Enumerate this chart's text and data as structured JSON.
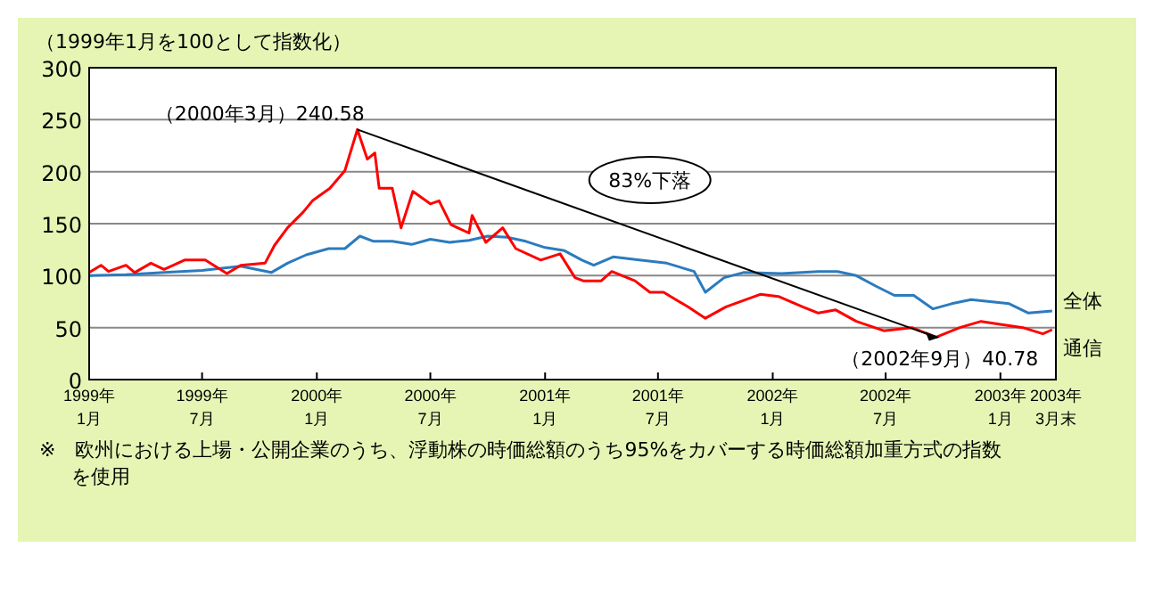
{
  "chart_data": {
    "type": "line",
    "ylabel": "（1999年1月を100として指数化）",
    "xlim": [
      "1999-01-01",
      "2003-03-31"
    ],
    "xticks": [
      {
        "value": "1999-01-01",
        "label": "1999年\n1月"
      },
      {
        "value": "1999-07-01",
        "label": "1999年\n7月"
      },
      {
        "value": "2000-01-01",
        "label": "2000年\n1月"
      },
      {
        "value": "2000-07-01",
        "label": "2000年\n7月"
      },
      {
        "value": "2001-01-01",
        "label": "2001年\n1月"
      },
      {
        "value": "2001-07-01",
        "label": "2001年\n7月"
      },
      {
        "value": "2002-01-01",
        "label": "2002年\n1月"
      },
      {
        "value": "2002-07-01",
        "label": "2002年\n7月"
      },
      {
        "value": "2003-01-01",
        "label": "2003年\n1月"
      },
      {
        "value": "2003-03-31",
        "label": "2003年\n3月末"
      }
    ],
    "ylim": [
      0,
      300
    ],
    "yticks": [
      0,
      50,
      100,
      150,
      200,
      250,
      300
    ],
    "grid": "y",
    "marker": "none",
    "line_style": "solid",
    "series": [
      {
        "name": "全体",
        "color": "#2b7bbf",
        "x": [
          "1999-01-01",
          "1999-03-01",
          "1999-05-01",
          "1999-07-01",
          "1999-09-01",
          "1999-10-20",
          "1999-11-15",
          "1999-12-15",
          "2000-01-20",
          "2000-02-15",
          "2000-03-10",
          "2000-04-01",
          "2000-05-01",
          "2000-06-01",
          "2000-07-01",
          "2000-08-01",
          "2000-09-01",
          "2000-10-01",
          "2000-11-01",
          "2000-12-01",
          "2001-01-01",
          "2001-02-01",
          "2001-03-01",
          "2001-03-20",
          "2001-04-20",
          "2001-06-01",
          "2001-07-15",
          "2001-08-28",
          "2001-09-15",
          "2001-10-15",
          "2001-11-15",
          "2002-01-15",
          "2002-03-15",
          "2002-04-15",
          "2002-05-15",
          "2002-06-15",
          "2002-07-15",
          "2002-08-15",
          "2002-09-15",
          "2002-10-15",
          "2002-11-15",
          "2003-01-15",
          "2003-02-15",
          "2003-03-25"
        ],
        "values": [
          100,
          101,
          103,
          105,
          109,
          103,
          112,
          120,
          126,
          126,
          138,
          133,
          133,
          130,
          135,
          132,
          134,
          138,
          137,
          133,
          127,
          124,
          115,
          110,
          118,
          115,
          112,
          104,
          84,
          98,
          103,
          102,
          104,
          104,
          100,
          90,
          81,
          81,
          68,
          73,
          77,
          73,
          64,
          66
        ]
      },
      {
        "name": "通信",
        "color": "#ff0000",
        "x": [
          "1999-01-01",
          "1999-01-20",
          "1999-02-01",
          "1999-03-01",
          "1999-03-15",
          "1999-04-10",
          "1999-05-01",
          "1999-06-03",
          "1999-07-06",
          "1999-08-10",
          "1999-09-01",
          "1999-10-10",
          "1999-10-25",
          "1999-11-15",
          "1999-12-10",
          "1999-12-25",
          "2000-01-22",
          "2000-02-15",
          "2000-03-06",
          "2000-03-22",
          "2000-04-03",
          "2000-04-10",
          "2000-05-01",
          "2000-05-15",
          "2000-06-03",
          "2000-07-01",
          "2000-07-15",
          "2000-08-03",
          "2000-09-01",
          "2000-09-06",
          "2000-09-28",
          "2000-10-25",
          "2000-11-15",
          "2000-12-25",
          "2001-01-25",
          "2001-02-18",
          "2001-03-03",
          "2001-04-01",
          "2001-04-18",
          "2001-05-25",
          "2001-06-18",
          "2001-07-10",
          "2001-08-18",
          "2001-09-15",
          "2001-10-18",
          "2001-12-12",
          "2002-01-10",
          "2002-02-18",
          "2002-03-15",
          "2002-04-12",
          "2002-05-15",
          "2002-06-28",
          "2002-08-12",
          "2002-09-20",
          "2002-10-28",
          "2002-12-01",
          "2003-01-03",
          "2003-02-06",
          "2003-03-10",
          "2003-03-25"
        ],
        "values": [
          103,
          110,
          104,
          110,
          103,
          112,
          106,
          115,
          115,
          102,
          110,
          112,
          129,
          146,
          161,
          172,
          184,
          201,
          240.58,
          212,
          218,
          184,
          184,
          146,
          181,
          169,
          172,
          149,
          141,
          158,
          132,
          146,
          126,
          115,
          121,
          98,
          95,
          95,
          104,
          95,
          84,
          84,
          70,
          59,
          70,
          82,
          80,
          70,
          64,
          67,
          56,
          47,
          50,
          40.78,
          50,
          56,
          53,
          50,
          44,
          48
        ]
      }
    ],
    "annotations": [
      {
        "text": "（2000年3月）240.58",
        "x": "2000-03-06",
        "y": 240.58
      },
      {
        "text": "（2002年9月）40.78",
        "x": "2002-09-20",
        "y": 40.78
      },
      "83%下落",
      "※　欧州における上場・公開企業のうち、浮動株の時価総額のうち95%をカバーする時価総額加重方式の指数を使用"
    ]
  }
}
